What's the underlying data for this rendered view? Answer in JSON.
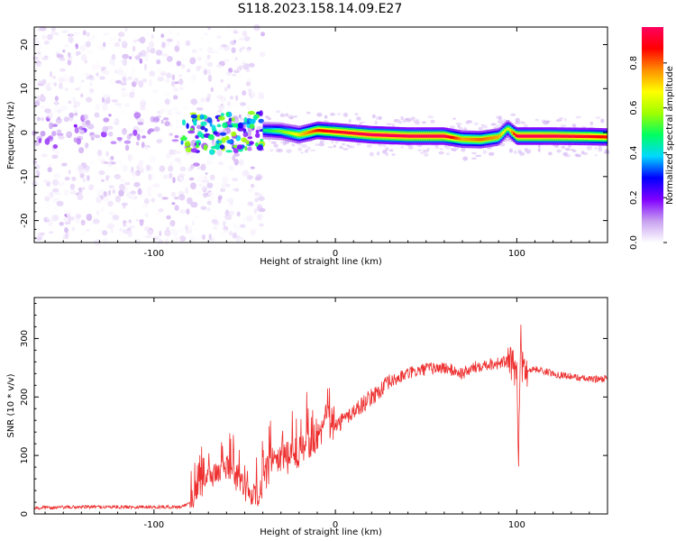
{
  "title": "S118.2023.158.14.09.E27",
  "chart_data": [
    {
      "type": "heatmap",
      "name": "spectrogram",
      "xlabel": "Height of straight line (km)",
      "ylabel": "Frequency (Hz)",
      "xlim": [
        -166,
        150
      ],
      "ylim": [
        -25,
        24
      ],
      "xticks": [
        -100,
        0,
        100
      ],
      "yticks": [
        -20,
        -10,
        0,
        10,
        20
      ],
      "colorbar": {
        "label": "Normalized spectral amplitude",
        "range": [
          0,
          0.96
        ],
        "ticks": [
          "0.0",
          "0.2",
          "0.4",
          "0.6",
          "0.8"
        ],
        "tick_values": [
          0.0,
          0.2,
          0.4,
          0.6,
          0.8
        ],
        "colors": [
          "#ffffff",
          "#c8a0f0",
          "#8000ff",
          "#0000ff",
          "#00d8ff",
          "#00ff60",
          "#a0ff00",
          "#ffff00",
          "#ff9000",
          "#ff0000",
          "#ff0060"
        ]
      },
      "ridge": {
        "x": [
          -40,
          -30,
          -20,
          -10,
          0,
          20,
          40,
          60,
          70,
          80,
          90,
          95,
          100,
          120,
          140,
          150
        ],
        "y": [
          0.5,
          0.3,
          -0.5,
          0.5,
          0.2,
          -0.5,
          -0.8,
          -0.8,
          -1.5,
          -1.6,
          -1.0,
          1.0,
          -0.8,
          -0.8,
          -0.9,
          -1.0
        ],
        "amplitude": [
          0.45,
          0.55,
          0.7,
          0.85,
          0.9,
          0.95,
          0.95,
          0.95,
          0.75,
          0.8,
          0.75,
          0.6,
          0.95,
          0.95,
          0.9,
          0.85
        ]
      },
      "scatter_region": {
        "x": [
          -166,
          -40
        ],
        "y": [
          -25,
          24
        ]
      }
    },
    {
      "type": "line",
      "name": "snr",
      "xlabel": "Height of straight line (km)",
      "ylabel": "SNR (10 * v/v)",
      "xlim": [
        -166,
        150
      ],
      "ylim": [
        0,
        370
      ],
      "xticks": [
        -100,
        0,
        100
      ],
      "yticks": [
        0,
        100,
        200,
        300
      ],
      "color": "#ee3030",
      "series": [
        {
          "x": [
            -166,
            -140,
            -110,
            -85,
            -80,
            -72,
            -60,
            -50,
            -43,
            -35,
            -25,
            -20,
            -10,
            -5,
            0,
            10,
            20,
            30,
            40,
            50,
            60,
            70,
            80,
            90,
            95,
            100,
            101,
            102,
            103,
            105,
            110,
            120,
            130,
            140,
            150
          ],
          "y": [
            10,
            12,
            12,
            12,
            20,
            60,
            80,
            45,
            30,
            90,
            95,
            110,
            130,
            160,
            150,
            175,
            200,
            225,
            240,
            248,
            250,
            240,
            255,
            258,
            260,
            245,
            100,
            310,
            250,
            245,
            248,
            240,
            235,
            230,
            232
          ]
        }
      ]
    }
  ]
}
